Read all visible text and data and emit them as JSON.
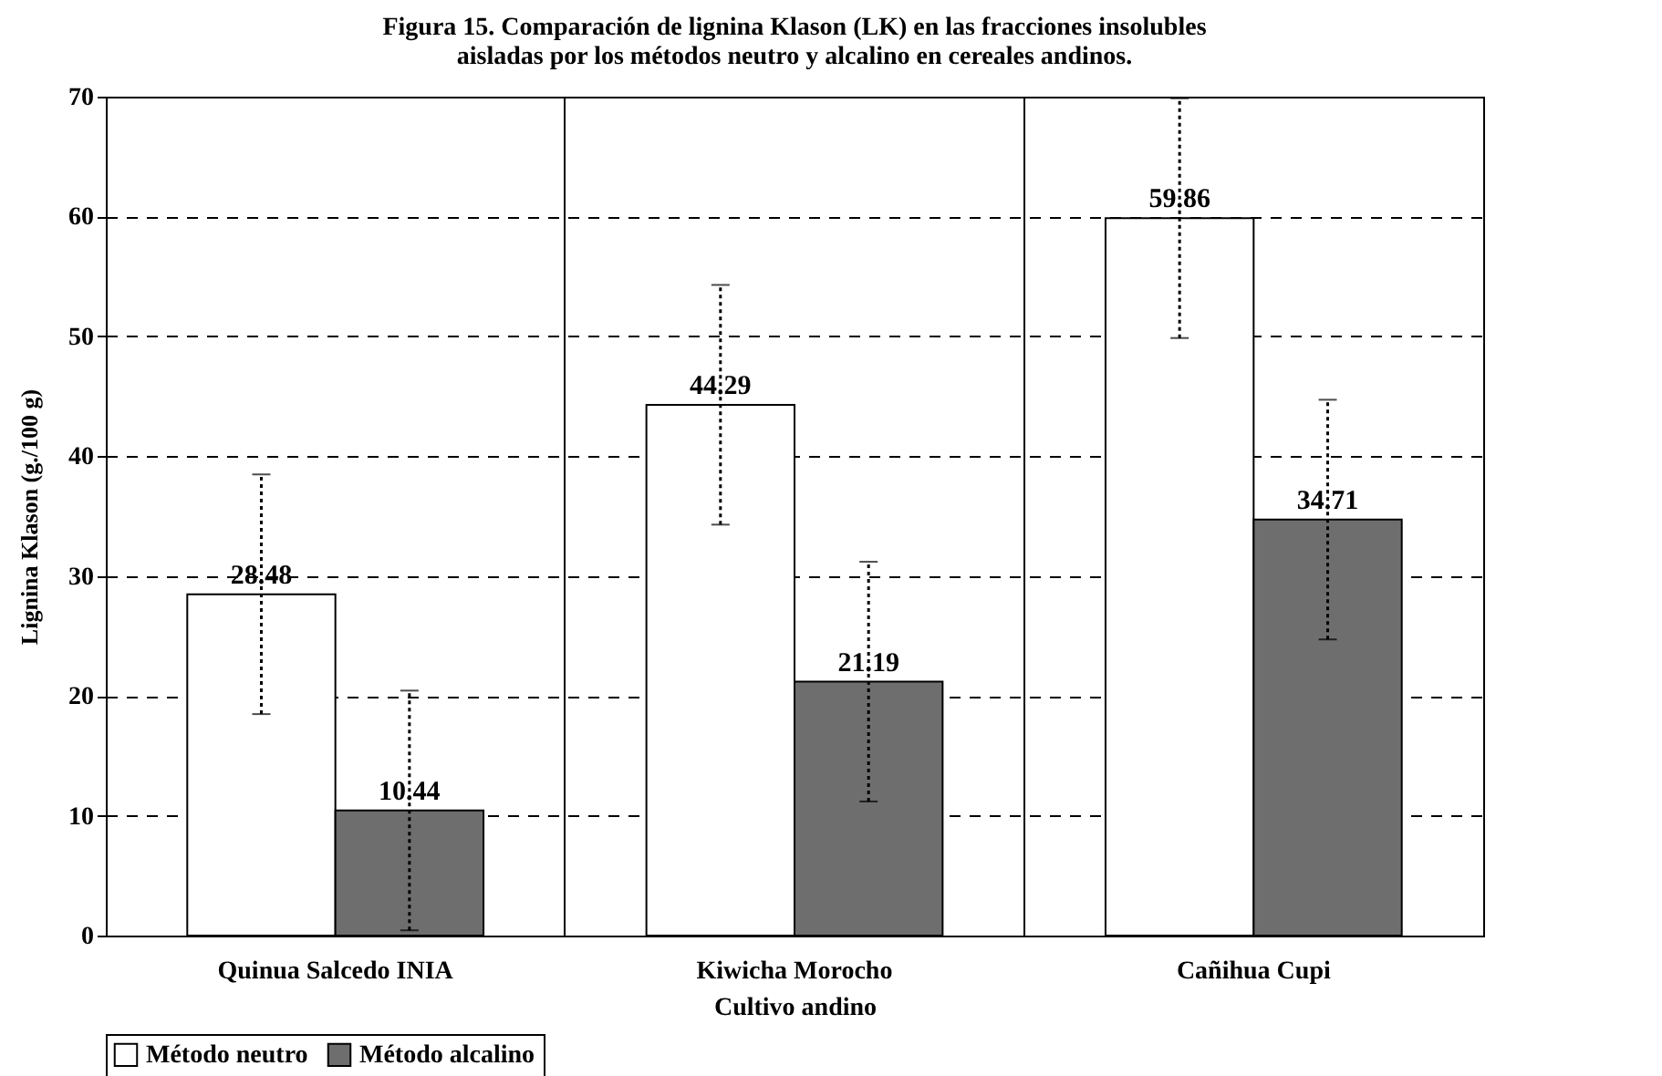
{
  "chart_data": {
    "type": "bar",
    "title": "Figura 15. Comparación de lignina Klason (LK) en las fracciones insolubles\naisladas por los métodos neutro y alcalino en cereales andinos.",
    "xlabel": "Cultivo andino",
    "ylabel": "Lignina Klason (g./100 g)",
    "categories": [
      "Quinua Salcedo INIA",
      "Kiwicha Morocho",
      "Cañihua Cupi"
    ],
    "series": [
      {
        "name": "Método neutro",
        "color": "#ffffff",
        "values": [
          28.48,
          44.29,
          59.86
        ],
        "errors": [
          10,
          10,
          10
        ]
      },
      {
        "name": "Método alcalino",
        "color": "#6e6e6e",
        "values": [
          10.44,
          21.19,
          34.71
        ],
        "errors": [
          10,
          10,
          10
        ]
      }
    ],
    "ylim": [
      0,
      70
    ],
    "yticks": [
      0,
      10,
      20,
      30,
      40,
      50,
      60,
      70
    ],
    "grid": true,
    "legend": "bottom",
    "data_labels": true
  }
}
